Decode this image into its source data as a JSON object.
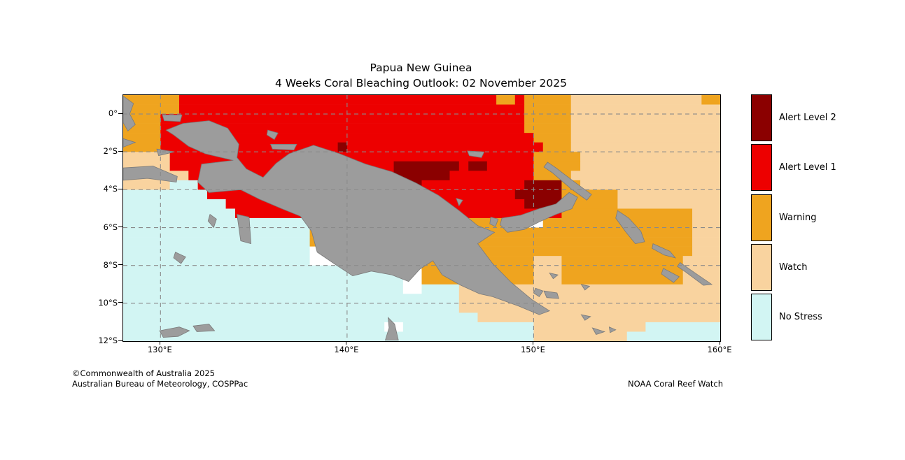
{
  "title": {
    "line1": "Papua New Guinea",
    "line2": "4 Weeks Coral Bleaching Outlook: 02 November 2025"
  },
  "attribution": {
    "copyright": "©Commonwealth of Australia 2025",
    "agency": "Australian Bureau of Meteorology, COSPPac",
    "credit": "NOAA Coral Reef Watch"
  },
  "legend": {
    "items": [
      {
        "label": "Alert Level 2",
        "color": "#8b0000"
      },
      {
        "label": "Alert Level 1",
        "color": "#ed0000"
      },
      {
        "label": "Warning",
        "color": "#efa41f"
      },
      {
        "label": "Watch",
        "color": "#f9d39f"
      },
      {
        "label": "No Stress",
        "color": "#d2f5f3"
      }
    ]
  },
  "axes": {
    "lat_ticks": [
      {
        "label": "0°",
        "lat": 0
      },
      {
        "label": "2°S",
        "lat": -2
      },
      {
        "label": "4°S",
        "lat": -4
      },
      {
        "label": "6°S",
        "lat": -6
      },
      {
        "label": "8°S",
        "lat": -8
      },
      {
        "label": "10°S",
        "lat": -10
      },
      {
        "label": "12°S",
        "lat": -12
      }
    ],
    "lon_ticks": [
      {
        "label": "130°E",
        "lon": 130
      },
      {
        "label": "140°E",
        "lon": 140
      },
      {
        "label": "150°E",
        "lon": 150
      },
      {
        "label": "160°E",
        "lon": 160
      }
    ]
  },
  "map": {
    "bounds": {
      "lon_min": 128,
      "lon_max": 160,
      "lat_max": 1.0,
      "lat_min": -12.0
    },
    "cell_deg": 0.5,
    "colors": {
      "d": "#8b0000",
      "r": "#ed0000",
      "g": "#efa41f",
      "w": "#f9d39f",
      "n": "#d2f5f3",
      "x": "#ffffff",
      "land": "#9c9c9c",
      "land_edge": "#7a7a7a",
      "grid": "#8a8a8a"
    },
    "grid_rows": [
      "g6,r34,g2,r1,g5,w14,g2",
      "g6,r37,g5,w16",
      "g4,r39,g5,w16",
      "g4,r39,g5,w16",
      "g4,r40,g4,w16",
      "g4,r19,d1,r21,g3,w16",
      "w5,r39,g5,w15",
      "w5,r24,d7,r1,d2,r5,g5,w15",
      "w7,r22,d6,r9,g4,w16",
      "w5,n3,r22,d2,r11,d4,g2,w15",
      "n9,r33,d5,g6,w11",
      "n11,r32,d4,g6,w11",
      "n12,r35,g14,w3",
      "n20,g22,x3,g16,w3",
      "n20,g41,w3",
      "n20,g41,w3",
      "n20,x3,g38,w3",
      "n20,x3,n3,g18,w3,g13,w4",
      "n30,x2,g12,w3,g13,w4",
      "n30,x2,g12,w3,g13,w4",
      "n30,x2,n4,w28",
      "n36,w28",
      "n36,w28",
      "n38,w26",
      "n28,x2,n14,w12,n8",
      "n44,w10,n10"
    ],
    "land_polygons": [
      {
        "name": "new-guinea-mainland",
        "points": [
          [
            130.3,
            -0.85
          ],
          [
            131.2,
            -0.5
          ],
          [
            132.6,
            -0.35
          ],
          [
            133.6,
            -0.75
          ],
          [
            134.2,
            -1.6
          ],
          [
            134.1,
            -2.3
          ],
          [
            134.6,
            -2.9
          ],
          [
            135.5,
            -3.35
          ],
          [
            136.2,
            -2.6
          ],
          [
            136.9,
            -2.1
          ],
          [
            138.2,
            -1.65
          ],
          [
            139.6,
            -2.1
          ],
          [
            141.0,
            -2.65
          ],
          [
            142.4,
            -3.05
          ],
          [
            143.7,
            -3.65
          ],
          [
            144.9,
            -4.3
          ],
          [
            146.0,
            -5.1
          ],
          [
            147.0,
            -5.9
          ],
          [
            147.9,
            -6.25
          ],
          [
            147.0,
            -6.85
          ],
          [
            147.8,
            -7.9
          ],
          [
            148.8,
            -8.9
          ],
          [
            149.9,
            -9.8
          ],
          [
            150.85,
            -10.4
          ],
          [
            150.3,
            -10.6
          ],
          [
            149.2,
            -10.15
          ],
          [
            147.8,
            -9.65
          ],
          [
            147.1,
            -9.5
          ],
          [
            146.1,
            -9.05
          ],
          [
            145.1,
            -8.5
          ],
          [
            144.6,
            -7.75
          ],
          [
            143.9,
            -8.2
          ],
          [
            143.3,
            -8.85
          ],
          [
            142.4,
            -8.5
          ],
          [
            141.3,
            -8.3
          ],
          [
            140.3,
            -8.55
          ],
          [
            139.3,
            -7.9
          ],
          [
            138.4,
            -7.3
          ],
          [
            138.1,
            -6.2
          ],
          [
            137.5,
            -5.4
          ],
          [
            136.5,
            -5.0
          ],
          [
            135.3,
            -4.5
          ],
          [
            134.3,
            -4.0
          ],
          [
            132.6,
            -4.15
          ],
          [
            132.0,
            -3.6
          ],
          [
            132.2,
            -2.65
          ],
          [
            133.9,
            -2.45
          ],
          [
            132.4,
            -2.1
          ],
          [
            131.5,
            -1.7
          ],
          [
            130.7,
            -1.1
          ]
        ]
      },
      {
        "name": "halmahera",
        "points": [
          [
            128,
            0.95
          ],
          [
            128.55,
            0.55
          ],
          [
            128.35,
            0
          ],
          [
            128.65,
            -0.55
          ],
          [
            128.25,
            -0.9
          ],
          [
            128,
            -0.45
          ]
        ]
      },
      {
        "name": "waigeo",
        "points": [
          [
            130.1,
            -0.05
          ],
          [
            131.15,
            -0.05
          ],
          [
            131.05,
            -0.4
          ],
          [
            130.2,
            -0.35
          ]
        ]
      },
      {
        "name": "obi",
        "points": [
          [
            128,
            -1.3
          ],
          [
            128.65,
            -1.5
          ],
          [
            128,
            -1.75
          ]
        ]
      },
      {
        "name": "misool",
        "points": [
          [
            129.8,
            -1.85
          ],
          [
            130.75,
            -2.0
          ],
          [
            129.9,
            -2.2
          ]
        ]
      },
      {
        "name": "seram",
        "points": [
          [
            128,
            -2.85
          ],
          [
            129.6,
            -2.75
          ],
          [
            130.9,
            -3.3
          ],
          [
            130.85,
            -3.6
          ],
          [
            129.3,
            -3.4
          ],
          [
            128,
            -3.5
          ]
        ]
      },
      {
        "name": "biak",
        "points": [
          [
            135.75,
            -0.85
          ],
          [
            136.3,
            -1.0
          ],
          [
            136.1,
            -1.35
          ],
          [
            135.7,
            -1.1
          ]
        ]
      },
      {
        "name": "yapen",
        "points": [
          [
            135.9,
            -1.6
          ],
          [
            137.3,
            -1.6
          ],
          [
            137.15,
            -1.9
          ],
          [
            136.0,
            -1.85
          ]
        ]
      },
      {
        "name": "aru",
        "points": [
          [
            134.1,
            -5.3
          ],
          [
            134.75,
            -5.45
          ],
          [
            134.85,
            -6.85
          ],
          [
            134.3,
            -6.7
          ]
        ]
      },
      {
        "name": "kai",
        "points": [
          [
            132.65,
            -5.3
          ],
          [
            133.0,
            -5.55
          ],
          [
            132.85,
            -6.0
          ],
          [
            132.55,
            -5.65
          ]
        ]
      },
      {
        "name": "tanimbar",
        "points": [
          [
            130.8,
            -7.3
          ],
          [
            131.35,
            -7.55
          ],
          [
            131.1,
            -7.9
          ],
          [
            130.7,
            -7.6
          ]
        ]
      },
      {
        "name": "manus",
        "points": [
          [
            146.45,
            -1.95
          ],
          [
            147.35,
            -2.0
          ],
          [
            147.2,
            -2.3
          ],
          [
            146.55,
            -2.2
          ]
        ]
      },
      {
        "name": "karkar",
        "points": [
          [
            145.85,
            -4.45
          ],
          [
            146.2,
            -4.55
          ],
          [
            146.0,
            -4.85
          ]
        ]
      },
      {
        "name": "umboi",
        "points": [
          [
            147.7,
            -5.45
          ],
          [
            148.1,
            -5.55
          ],
          [
            147.95,
            -5.95
          ],
          [
            147.65,
            -5.8
          ]
        ]
      },
      {
        "name": "new-britain",
        "points": [
          [
            148.3,
            -5.5
          ],
          [
            149.3,
            -5.35
          ],
          [
            150.3,
            -5.0
          ],
          [
            151.2,
            -4.75
          ],
          [
            151.9,
            -4.15
          ],
          [
            152.35,
            -4.4
          ],
          [
            152.05,
            -5.0
          ],
          [
            151.2,
            -5.3
          ],
          [
            150.3,
            -5.7
          ],
          [
            149.5,
            -6.1
          ],
          [
            148.6,
            -6.25
          ],
          [
            148.2,
            -5.85
          ]
        ]
      },
      {
        "name": "new-ireland",
        "points": [
          [
            150.75,
            -2.55
          ],
          [
            151.2,
            -2.85
          ],
          [
            152.2,
            -3.6
          ],
          [
            153.1,
            -4.25
          ],
          [
            152.85,
            -4.55
          ],
          [
            152.0,
            -3.95
          ],
          [
            151.0,
            -3.1
          ],
          [
            150.55,
            -2.8
          ]
        ]
      },
      {
        "name": "bougainville",
        "points": [
          [
            154.5,
            -5.1
          ],
          [
            155.1,
            -5.5
          ],
          [
            155.75,
            -6.2
          ],
          [
            155.95,
            -6.75
          ],
          [
            155.45,
            -6.85
          ],
          [
            154.95,
            -6.25
          ],
          [
            154.4,
            -5.5
          ]
        ]
      },
      {
        "name": "choiseul",
        "points": [
          [
            156.4,
            -6.85
          ],
          [
            157.3,
            -7.25
          ],
          [
            157.6,
            -7.6
          ],
          [
            157.0,
            -7.45
          ],
          [
            156.35,
            -7.1
          ]
        ]
      },
      {
        "name": "new-georgia",
        "points": [
          [
            156.95,
            -8.15
          ],
          [
            157.8,
            -8.6
          ],
          [
            157.5,
            -8.9
          ],
          [
            156.85,
            -8.45
          ]
        ]
      },
      {
        "name": "santa-isabel",
        "points": [
          [
            157.85,
            -7.85
          ],
          [
            158.8,
            -8.5
          ],
          [
            159.55,
            -9.0
          ],
          [
            159.1,
            -9.05
          ],
          [
            158.15,
            -8.35
          ],
          [
            157.7,
            -8.05
          ]
        ]
      },
      {
        "name": "goodenough",
        "points": [
          [
            150.1,
            -9.2
          ],
          [
            150.5,
            -9.35
          ],
          [
            150.3,
            -9.65
          ],
          [
            150.0,
            -9.45
          ]
        ]
      },
      {
        "name": "fergusson",
        "points": [
          [
            150.55,
            -9.35
          ],
          [
            151.25,
            -9.45
          ],
          [
            151.35,
            -9.75
          ],
          [
            150.7,
            -9.7
          ]
        ]
      },
      {
        "name": "trobriand",
        "points": [
          [
            150.85,
            -8.4
          ],
          [
            151.3,
            -8.5
          ],
          [
            151.05,
            -8.7
          ]
        ]
      },
      {
        "name": "woodlark",
        "points": [
          [
            152.55,
            -9.0
          ],
          [
            153.0,
            -9.1
          ],
          [
            152.75,
            -9.3
          ]
        ]
      },
      {
        "name": "misima",
        "points": [
          [
            152.55,
            -10.6
          ],
          [
            153.05,
            -10.7
          ],
          [
            152.75,
            -10.9
          ]
        ]
      },
      {
        "name": "tagula",
        "points": [
          [
            153.15,
            -11.3
          ],
          [
            153.8,
            -11.5
          ],
          [
            153.35,
            -11.65
          ]
        ]
      },
      {
        "name": "rossel",
        "points": [
          [
            154.05,
            -11.25
          ],
          [
            154.4,
            -11.4
          ],
          [
            154.1,
            -11.55
          ]
        ]
      },
      {
        "name": "melville-island",
        "points": [
          [
            129.95,
            -11.45
          ],
          [
            131.0,
            -11.25
          ],
          [
            131.55,
            -11.45
          ],
          [
            130.95,
            -11.75
          ],
          [
            130.15,
            -11.8
          ]
        ]
      },
      {
        "name": "cobourg-peninsula",
        "points": [
          [
            131.75,
            -11.2
          ],
          [
            132.6,
            -11.1
          ],
          [
            132.9,
            -11.45
          ],
          [
            131.95,
            -11.5
          ]
        ]
      },
      {
        "name": "cape-york",
        "points": [
          [
            142.2,
            -10.75
          ],
          [
            142.55,
            -11.1
          ],
          [
            142.75,
            -11.95
          ],
          [
            142.05,
            -11.95
          ],
          [
            142.25,
            -11.3
          ]
        ]
      }
    ]
  }
}
